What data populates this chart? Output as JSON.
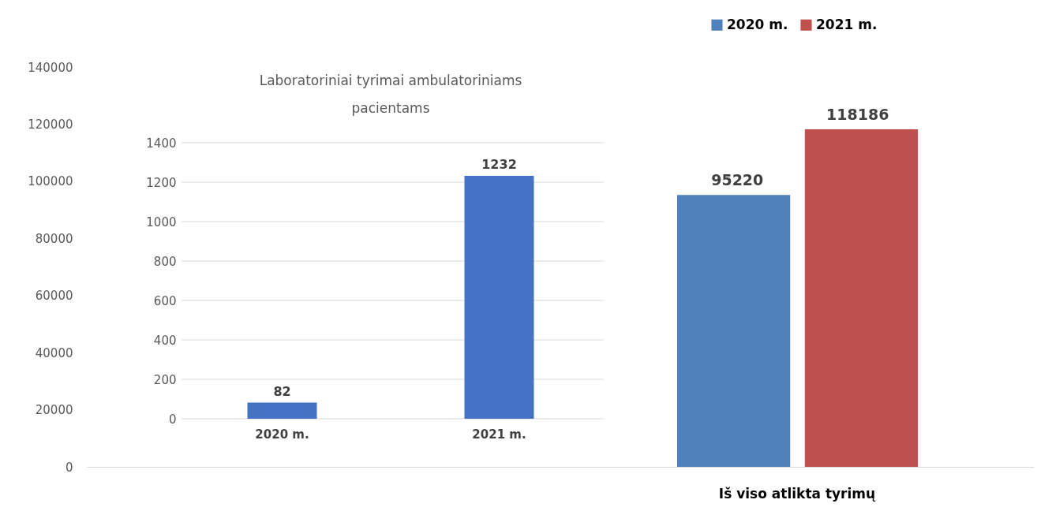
{
  "chart_data": [
    {
      "type": "bar",
      "categories": [
        "Iš viso atlikta tyrimų"
      ],
      "series": [
        {
          "name": "2020 m.",
          "color": "#4f81bd",
          "values": [
            95220
          ]
        },
        {
          "name": "2021 m.",
          "color": "#c0504d",
          "values": [
            118186
          ]
        }
      ],
      "ylim": [
        0,
        140000
      ],
      "yticks": [
        0,
        20000,
        40000,
        60000,
        80000,
        100000,
        120000,
        140000
      ],
      "data_labels": true,
      "legend": "top right"
    },
    {
      "type": "bar",
      "title": "Laboratoriniai tyrimai ambulatoriniams pacientams",
      "categories": [
        "2020 m.",
        "2021 m."
      ],
      "values": [
        82,
        1232
      ],
      "color": "#4472c4",
      "ylim": [
        0,
        1400
      ],
      "yticks": [
        0,
        200,
        400,
        600,
        800,
        1000,
        1200,
        1400
      ],
      "data_labels": true,
      "grid": "y"
    }
  ]
}
